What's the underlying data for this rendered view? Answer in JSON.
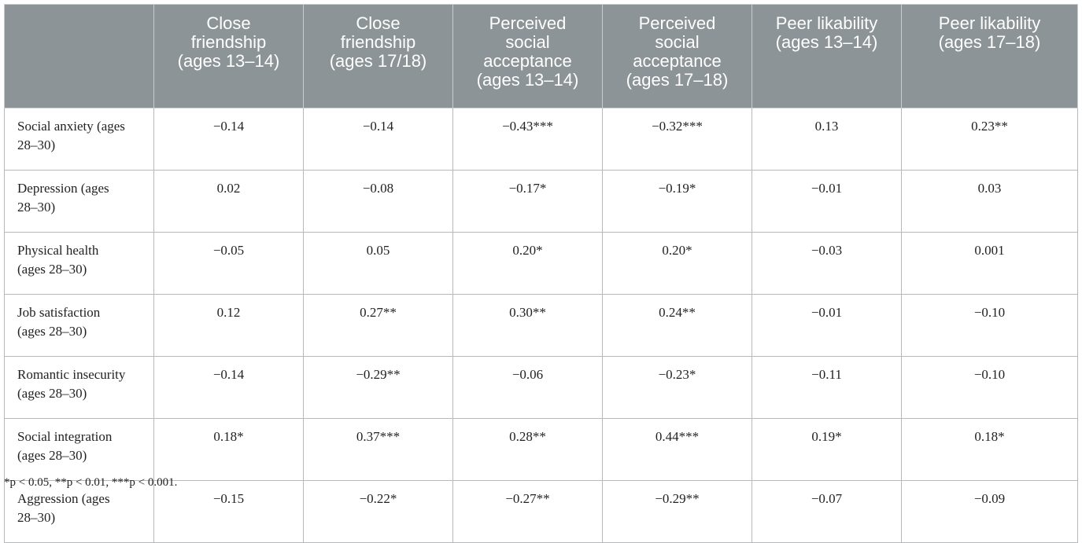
{
  "table": {
    "header": [
      "",
      "Close friendship (ages 13–14)",
      "Close friendship (ages 17/18)",
      "Perceived social acceptance (ages 13–14)",
      "Perceived social acceptance (ages 17–18)",
      "Peer likability (ages 13–14)",
      "Peer likability (ages 17–18)"
    ],
    "rows": [
      [
        "Social anxiety (ages 28–30)",
        "−0.14",
        "−0.14",
        "−0.43***",
        "−0.32***",
        "0.13",
        "0.23**"
      ],
      [
        "Depression (ages 28–30)",
        "0.02",
        "−0.08",
        "−0.17*",
        "−0.19*",
        "−0.01",
        "0.03"
      ],
      [
        "Physical health (ages 28–30)",
        "−0.05",
        "0.05",
        "0.20*",
        "0.20*",
        "−0.03",
        "0.001"
      ],
      [
        "Job satisfaction (ages 28–30)",
        "0.12",
        "0.27**",
        "0.30**",
        "0.24**",
        "−0.01",
        "−0.10"
      ],
      [
        "Romantic insecurity (ages 28–30)",
        "−0.14",
        "−0.29**",
        "−0.06",
        "−0.23*",
        "−0.11",
        "−0.10"
      ],
      [
        "Social integration (ages 28–30)",
        "0.18*",
        "0.37***",
        "0.28**",
        "0.44***",
        "0.19*",
        "0.18*"
      ],
      [
        "Aggression (ages 28–30)",
        "−0.15",
        "−0.22*",
        "−0.27**",
        "−0.29**",
        "−0.07",
        "−0.09"
      ]
    ]
  },
  "footnote": "*p < 0.05, **p < 0.01, ***p < 0.001."
}
